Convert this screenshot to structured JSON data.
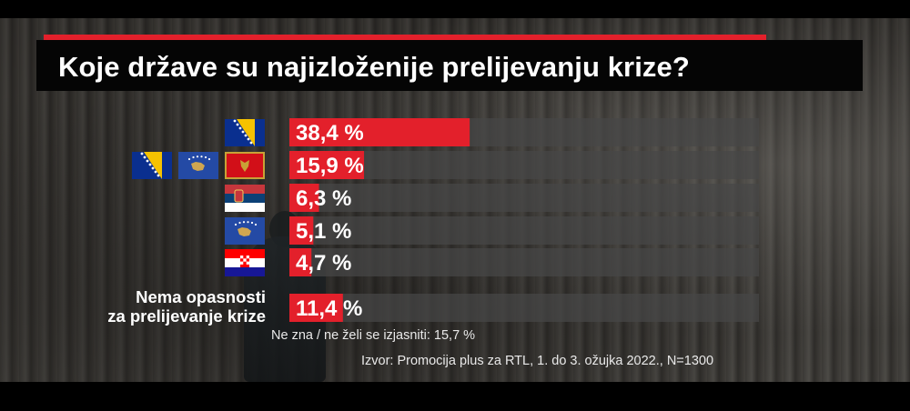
{
  "title": "Koje države su najizloženije prelijevanju krize?",
  "colors": {
    "accent": "#e3202b",
    "track": "rgba(70,70,70,0.72)",
    "title_bg": "#050505"
  },
  "chart_data": {
    "type": "bar",
    "orientation": "horizontal",
    "value_suffix": " %",
    "xlim": [
      0,
      100
    ],
    "categories": [
      {
        "label": "",
        "flags": [
          "bosnia-flag-icon"
        ]
      },
      {
        "label": "",
        "flags": [
          "bosnia-flag-icon",
          "kosovo-flag-icon",
          "montenegro-flag-icon"
        ]
      },
      {
        "label": "",
        "flags": [
          "serbia-flag-icon"
        ]
      },
      {
        "label": "",
        "flags": [
          "kosovo-flag-icon"
        ]
      },
      {
        "label": "",
        "flags": [
          "croatia-flag-icon"
        ]
      },
      {
        "label": [
          "Nema opasnosti",
          "za prelijevanje krize"
        ],
        "flags": []
      }
    ],
    "values": [
      38.4,
      15.9,
      6.3,
      5.1,
      4.7,
      11.4
    ],
    "value_labels": [
      "38,4 %",
      "15,9 %",
      "6,3 %",
      "5,1 %",
      "4,7 %",
      "11,4 %"
    ]
  },
  "footnote": "Ne zna / ne želi se izjasniti: 15,7 %",
  "source": "Izvor: Promocija plus za RTL, 1. do 3. ožujka 2022., N=1300"
}
